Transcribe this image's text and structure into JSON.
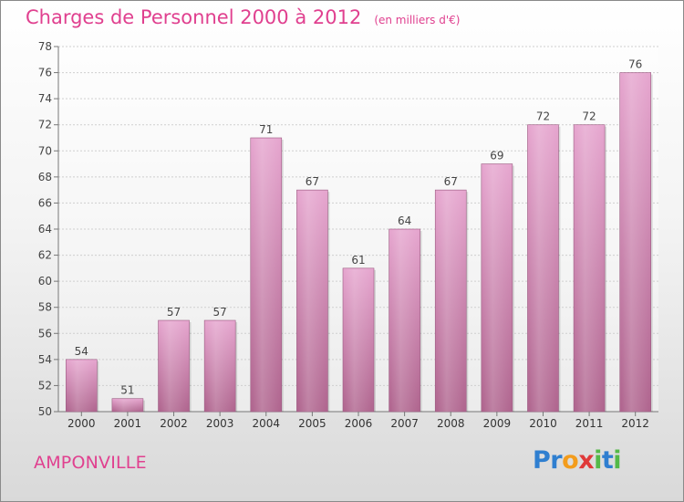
{
  "title": "Charges de Personnel 2000 à 2012",
  "title_unit": "(en milliers d'€)",
  "place": "AMPONVILLE",
  "brand": {
    "letters": [
      "P",
      "r",
      "o",
      "x",
      "i",
      "t",
      "i"
    ]
  },
  "colors": {
    "title": "#e0408f",
    "bar_top": "#e6a6cf",
    "bar_bottom": "#b0668f",
    "brand_letters": [
      "#2f7fd0",
      "#2f7fd0",
      "#f39c1c",
      "#e03a3a",
      "#54b948",
      "#2f7fd0",
      "#54b948"
    ]
  },
  "chart_data": {
    "type": "bar",
    "title": "Charges de Personnel 2000 à 2012",
    "categories": [
      "2000",
      "2001",
      "2002",
      "2003",
      "2004",
      "2005",
      "2006",
      "2007",
      "2008",
      "2009",
      "2010",
      "2011",
      "2012"
    ],
    "values": [
      54,
      51,
      57,
      57,
      71,
      67,
      61,
      64,
      67,
      69,
      72,
      72,
      76
    ],
    "ylim": [
      50,
      78
    ],
    "yticks": [
      50,
      52,
      54,
      56,
      58,
      60,
      62,
      64,
      66,
      68,
      70,
      72,
      74,
      76,
      78
    ],
    "grid": true,
    "xlabel": "",
    "ylabel": ""
  }
}
